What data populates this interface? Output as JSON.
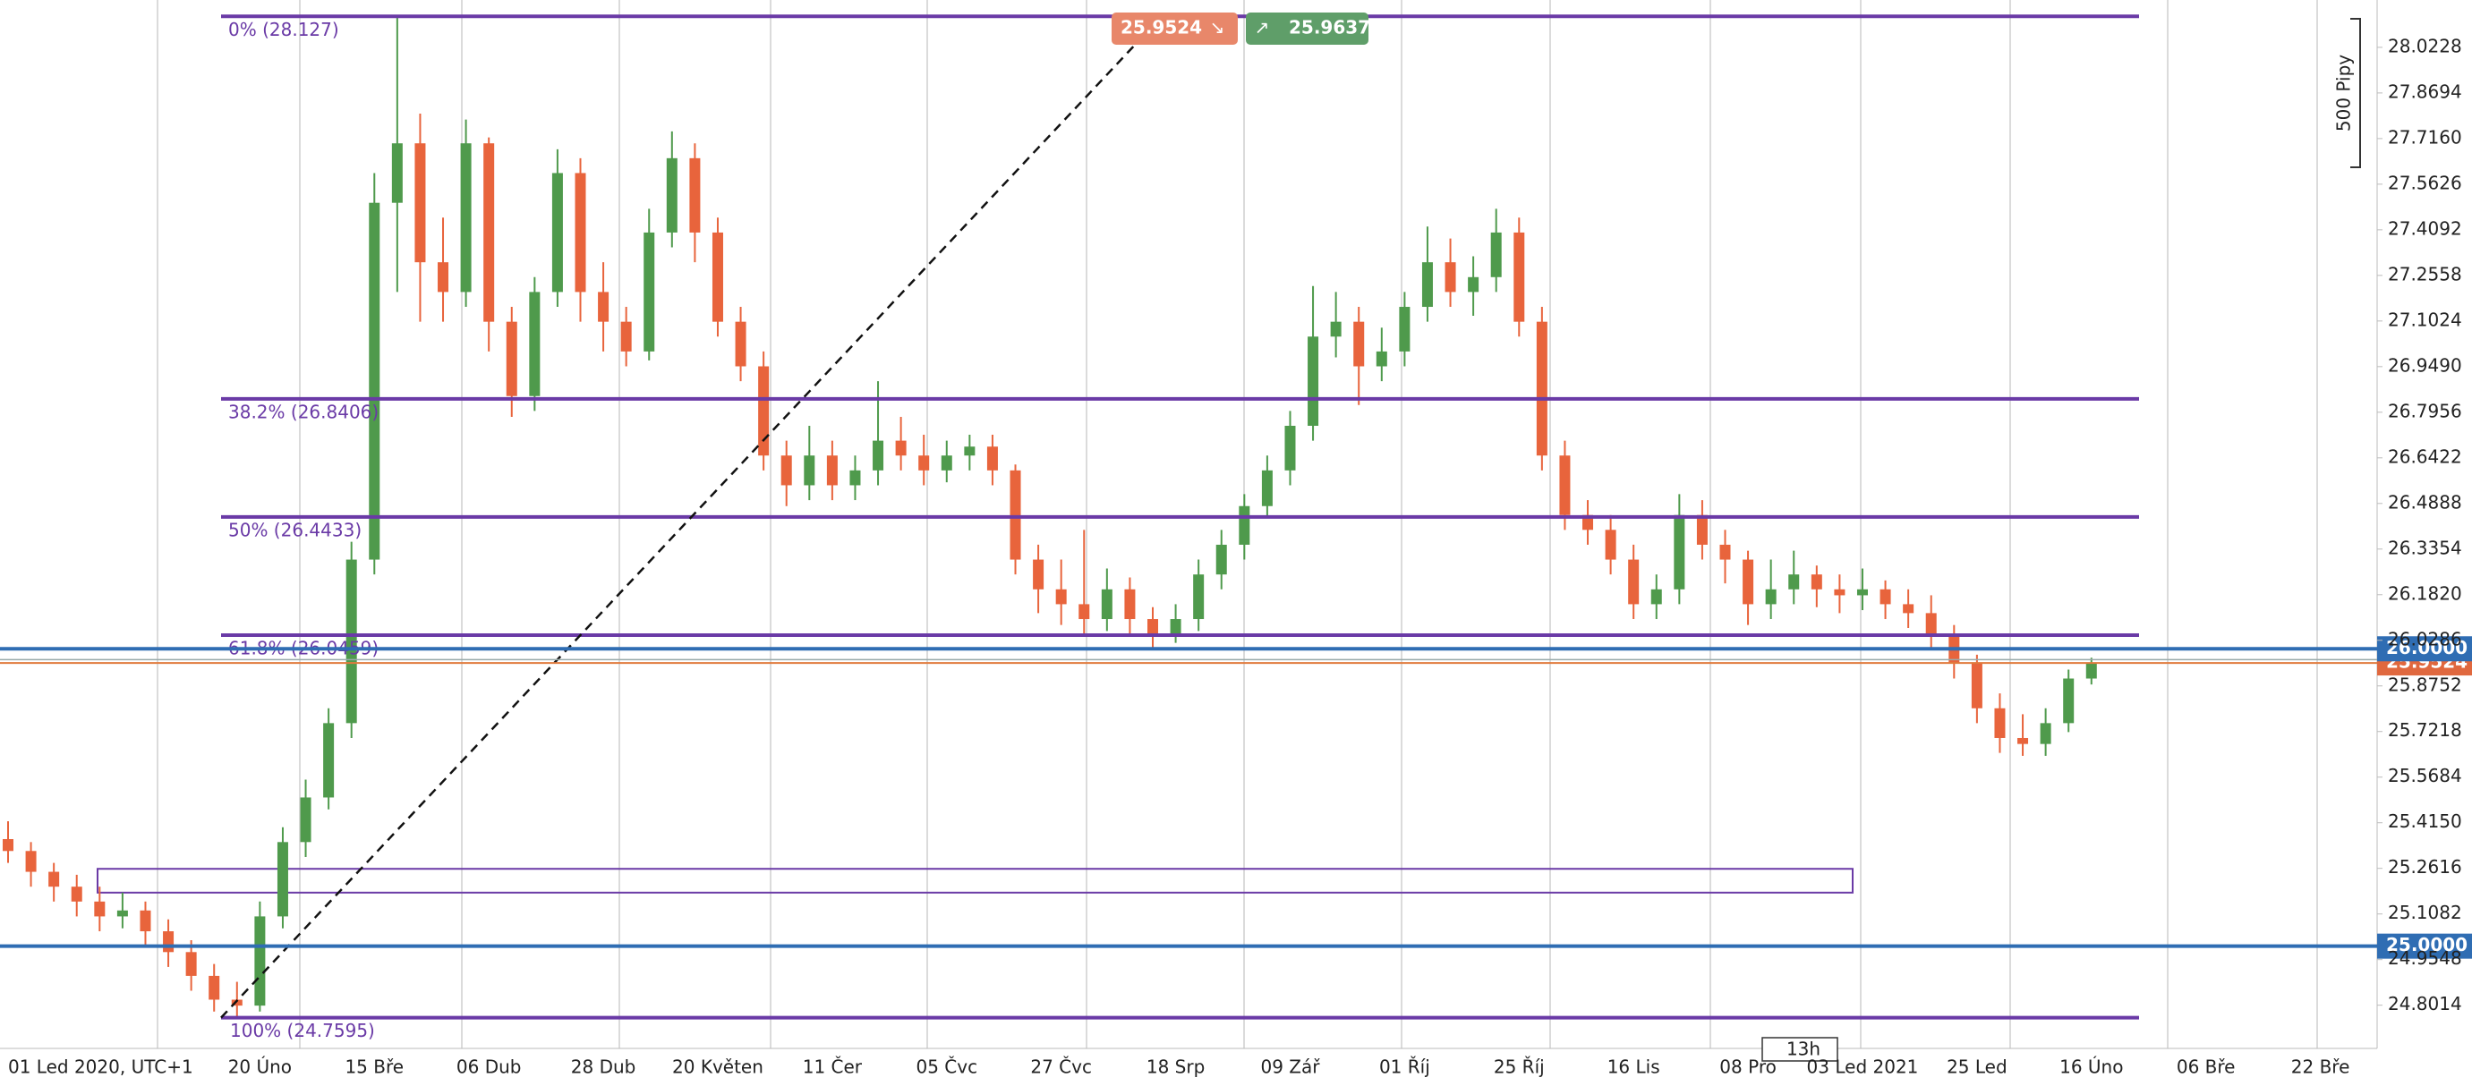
{
  "chart_data": {
    "type": "candlestick",
    "up_color": "#4f9a4c",
    "down_color": "#e8643c",
    "categories": [
      "01 Led 2020, UTC+1",
      null,
      null,
      null,
      null,
      null,
      null,
      null,
      null,
      null,
      null,
      "20 Úno",
      null,
      null,
      null,
      null,
      "15 Bře",
      null,
      null,
      null,
      null,
      "06 Dub",
      null,
      null,
      null,
      null,
      "28 Dub",
      null,
      null,
      null,
      null,
      "20 Květen",
      null,
      null,
      null,
      null,
      "11 Čer",
      null,
      null,
      null,
      null,
      "05 Čvc",
      null,
      null,
      null,
      null,
      "27 Čvc",
      null,
      null,
      null,
      null,
      "18 Srp",
      null,
      null,
      null,
      null,
      "09 Zář",
      null,
      null,
      null,
      null,
      "01 Říj",
      null,
      null,
      null,
      null,
      "25 Říj",
      null,
      null,
      null,
      null,
      "16 Lis",
      null,
      null,
      null,
      null,
      "08 Pro",
      null,
      null,
      null,
      null,
      "03 Led 2021",
      null,
      null,
      null,
      null,
      "25 Led",
      null,
      null,
      null,
      null,
      "16 Úno",
      null,
      null,
      null,
      null,
      "06 Bře",
      null,
      null,
      null,
      null,
      "22 Bře",
      null
    ],
    "open": [
      25.36,
      25.32,
      25.25,
      25.2,
      25.15,
      25.1,
      25.12,
      25.05,
      24.98,
      24.9,
      24.82,
      24.8,
      25.1,
      25.35,
      25.5,
      25.75,
      26.3,
      27.5,
      27.7,
      27.3,
      27.2,
      27.7,
      27.1,
      26.85,
      27.2,
      27.6,
      27.2,
      27.1,
      27.0,
      27.4,
      27.65,
      27.4,
      27.1,
      26.95,
      26.65,
      26.55,
      26.65,
      26.55,
      26.6,
      26.7,
      26.65,
      26.6,
      26.65,
      26.68,
      26.6,
      26.3,
      26.2,
      26.15,
      26.1,
      26.2,
      26.1,
      26.05,
      26.1,
      26.25,
      26.35,
      26.48,
      26.6,
      26.75,
      27.05,
      27.1,
      26.95,
      27.0,
      27.15,
      27.3,
      27.2,
      27.25,
      27.4,
      27.1,
      26.65,
      26.45,
      26.4,
      26.3,
      26.15,
      26.2,
      26.45,
      26.35,
      26.3,
      26.15,
      26.2,
      26.25,
      26.2,
      26.18,
      26.2,
      26.15,
      26.12,
      26.05,
      25.95,
      25.8,
      25.7,
      25.68,
      25.75,
      25.9,
      null,
      null,
      null,
      null,
      null,
      null,
      null,
      null,
      null,
      null,
      null
    ],
    "high": [
      25.42,
      25.35,
      25.28,
      25.24,
      25.2,
      25.18,
      25.15,
      25.09,
      25.02,
      24.94,
      24.88,
      25.15,
      25.4,
      25.56,
      25.8,
      26.36,
      27.6,
      28.127,
      27.8,
      27.45,
      27.78,
      27.72,
      27.15,
      27.25,
      27.68,
      27.65,
      27.3,
      27.15,
      27.48,
      27.74,
      27.7,
      27.45,
      27.15,
      27.0,
      26.7,
      26.75,
      26.7,
      26.65,
      26.9,
      26.78,
      26.72,
      26.7,
      26.72,
      26.72,
      26.62,
      26.35,
      26.3,
      26.4,
      26.27,
      26.24,
      26.14,
      26.15,
      26.3,
      26.4,
      26.52,
      26.65,
      26.8,
      27.22,
      27.2,
      27.15,
      27.08,
      27.2,
      27.42,
      27.38,
      27.32,
      27.48,
      27.45,
      27.15,
      26.7,
      26.5,
      26.45,
      26.35,
      26.25,
      26.52,
      26.5,
      26.4,
      26.33,
      26.3,
      26.33,
      26.28,
      26.25,
      26.27,
      26.23,
      26.2,
      26.18,
      26.08,
      25.98,
      25.85,
      25.78,
      25.8,
      25.93,
      25.97,
      null,
      null,
      null,
      null,
      null,
      null,
      null,
      null,
      null,
      null,
      null
    ],
    "low": [
      25.28,
      25.2,
      25.15,
      25.1,
      25.05,
      25.06,
      25.0,
      24.93,
      24.85,
      24.78,
      24.7595,
      24.78,
      25.06,
      25.3,
      25.46,
      25.7,
      26.25,
      27.2,
      27.1,
      27.1,
      27.15,
      27.0,
      26.78,
      26.8,
      27.15,
      27.1,
      27.0,
      26.95,
      26.97,
      27.35,
      27.3,
      27.05,
      26.9,
      26.6,
      26.48,
      26.5,
      26.5,
      26.5,
      26.55,
      26.6,
      26.55,
      26.56,
      26.6,
      26.55,
      26.25,
      26.12,
      26.08,
      26.05,
      26.06,
      26.05,
      26.0,
      26.02,
      26.06,
      26.2,
      26.3,
      26.44,
      26.55,
      26.7,
      26.98,
      26.82,
      26.9,
      26.95,
      27.1,
      27.15,
      27.12,
      27.2,
      27.05,
      26.6,
      26.4,
      26.35,
      26.25,
      26.1,
      26.1,
      26.15,
      26.3,
      26.22,
      26.08,
      26.1,
      26.15,
      26.14,
      26.12,
      26.13,
      26.1,
      26.07,
      26.0,
      25.9,
      25.75,
      25.65,
      25.64,
      25.64,
      25.72,
      25.88,
      null,
      null,
      null,
      null,
      null,
      null,
      null,
      null,
      null,
      null,
      null
    ],
    "close": [
      25.32,
      25.25,
      25.2,
      25.15,
      25.1,
      25.12,
      25.05,
      24.98,
      24.9,
      24.82,
      24.8,
      25.1,
      25.35,
      25.5,
      25.75,
      26.3,
      27.5,
      27.7,
      27.3,
      27.2,
      27.7,
      27.1,
      26.85,
      27.2,
      27.6,
      27.2,
      27.1,
      27.0,
      27.4,
      27.65,
      27.4,
      27.1,
      26.95,
      26.65,
      26.55,
      26.65,
      26.55,
      26.6,
      26.7,
      26.65,
      26.6,
      26.65,
      26.68,
      26.6,
      26.3,
      26.2,
      26.15,
      26.1,
      26.2,
      26.1,
      26.05,
      26.1,
      26.25,
      26.35,
      26.48,
      26.6,
      26.75,
      27.05,
      27.1,
      26.95,
      27.0,
      27.15,
      27.3,
      27.2,
      27.25,
      27.4,
      27.1,
      26.65,
      26.45,
      26.4,
      26.3,
      26.15,
      26.2,
      26.45,
      26.35,
      26.3,
      26.15,
      26.2,
      26.25,
      26.2,
      26.18,
      26.2,
      26.15,
      26.12,
      26.05,
      25.95,
      25.8,
      25.7,
      25.68,
      25.75,
      25.9,
      25.9524,
      null,
      null,
      null,
      null,
      null,
      null,
      null,
      null,
      null,
      null,
      null
    ],
    "ylim": [
      24.656,
      28.182
    ],
    "yticks": [
      28.0228,
      27.8694,
      {
        "value": 27.716,
        "label": "27.7160"
      },
      27.5626,
      27.4092,
      27.2558,
      27.1024,
      {
        "value": 26.949,
        "label": "26.9490"
      },
      26.7956,
      26.6422,
      26.4888,
      26.3354,
      {
        "value": 26.182,
        "label": "26.1820"
      },
      26.0286,
      25.8752,
      25.7218,
      25.5684,
      {
        "value": 25.415,
        "label": "25.4150"
      },
      25.2616,
      25.1082,
      24.9548,
      24.8014
    ],
    "fibonacci": [
      {
        "value": 28.127,
        "label": "0% (28.127)"
      },
      {
        "value": 26.8406,
        "label": "38.2% (26.8406)"
      },
      {
        "value": 26.4433,
        "label": "50% (26.4433)"
      },
      {
        "value": 26.0459,
        "label": "61.8% (26.0459)"
      },
      {
        "value": 24.7595,
        "label": "100% (24.7595)"
      }
    ],
    "fib_color": "#6a3aa6",
    "levels": [
      {
        "value": 26,
        "label": "26.0000"
      },
      {
        "value": 25,
        "label": "25.0000"
      }
    ],
    "level_color": "#2f6db3",
    "zone": [
      25.18,
      25.26
    ],
    "bid": 25.9524,
    "ask": 25.9637,
    "scale_note": "500 Pipy",
    "timeframe": "13h"
  }
}
